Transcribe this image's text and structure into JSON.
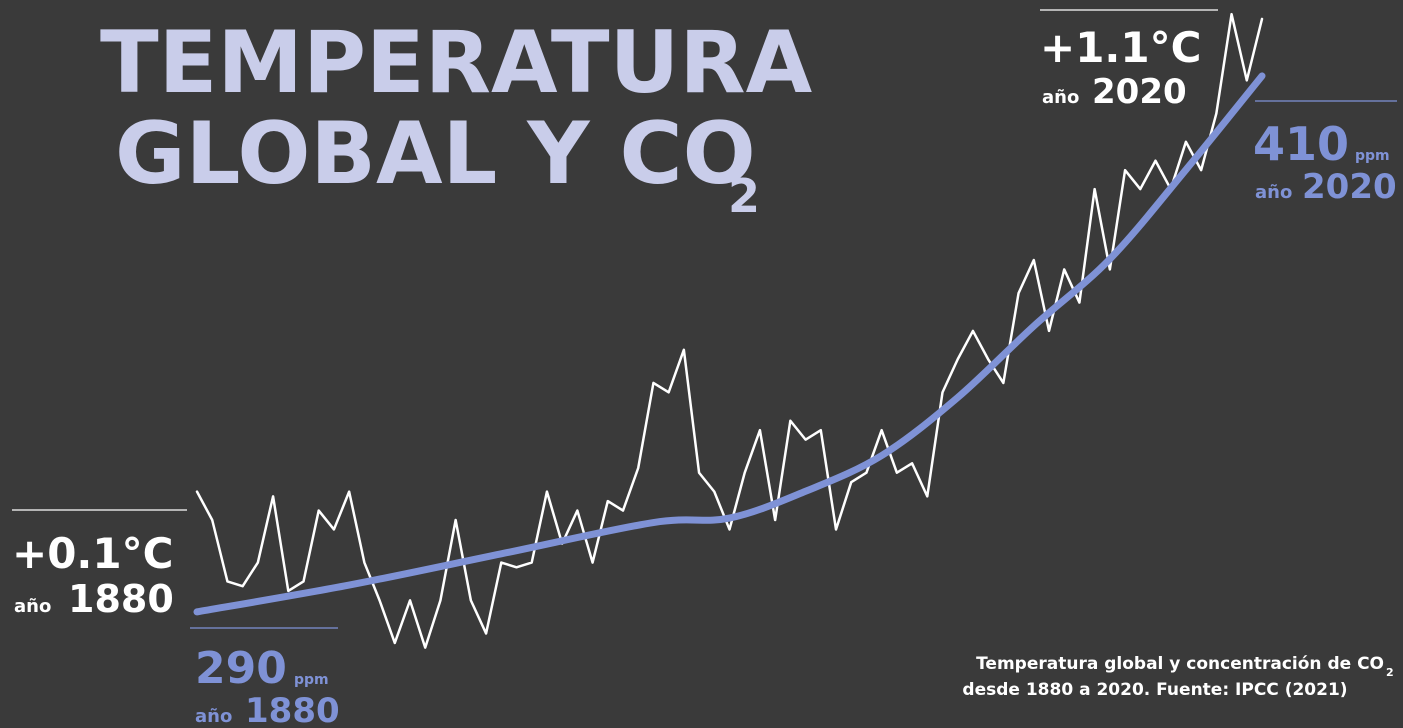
{
  "chart_data": {
    "type": "line",
    "title": [
      "TEMPERATURA",
      "GLOBAL Y CO",
      "2"
    ],
    "caption": [
      "Temperatura global y concentración de CO",
      "2",
      "desde 1880 a 2020. Fuente: IPCC (2021)"
    ],
    "year_prefix": "año",
    "unit2": "ppm",
    "xlim": [
      1880,
      2020
    ],
    "ylim": [
      -0.4,
      1.14
    ],
    "y2lim": [
      264,
      427
    ],
    "series": [
      {
        "color": "#ffffff",
        "x": [
          1880,
          1882,
          1884,
          1886,
          1888,
          1890,
          1892,
          1894,
          1896,
          1898,
          1900,
          1902,
          1904,
          1906,
          1908,
          1910,
          1912,
          1914,
          1916,
          1918,
          1920,
          1922,
          1924,
          1926,
          1928,
          1930,
          1932,
          1934,
          1936,
          1938,
          1940,
          1942,
          1944,
          1946,
          1948,
          1950,
          1952,
          1954,
          1956,
          1958,
          1960,
          1962,
          1964,
          1966,
          1968,
          1970,
          1972,
          1974,
          1976,
          1978,
          1980,
          1982,
          1984,
          1986,
          1988,
          1990,
          1992,
          1994,
          1996,
          1998,
          2000,
          2002,
          2004,
          2006,
          2008,
          2010,
          2012,
          2014,
          2016,
          2018,
          2020
        ],
        "values": [
          0.1,
          0.04,
          -0.09,
          -0.1,
          -0.05,
          0.09,
          -0.11,
          -0.09,
          0.06,
          0.02,
          0.1,
          -0.05,
          -0.13,
          -0.22,
          -0.13,
          -0.23,
          -0.13,
          0.04,
          -0.13,
          -0.2,
          -0.05,
          -0.06,
          -0.05,
          0.1,
          -0.01,
          0.06,
          -0.05,
          0.08,
          0.06,
          0.15,
          0.33,
          0.31,
          0.4,
          0.14,
          0.1,
          0.02,
          0.14,
          0.23,
          0.04,
          0.25,
          0.21,
          0.23,
          0.02,
          0.12,
          0.14,
          0.23,
          0.14,
          0.16,
          0.09,
          0.31,
          0.38,
          0.44,
          0.38,
          0.33,
          0.52,
          0.59,
          0.44,
          0.57,
          0.5,
          0.74,
          0.57,
          0.78,
          0.74,
          0.8,
          0.74,
          0.84,
          0.78,
          0.9,
          1.11,
          0.97,
          1.1
        ],
        "value_labels": [
          "+0.1°C",
          null,
          null,
          null,
          null,
          null,
          null,
          null,
          null,
          null,
          null,
          null,
          null,
          null,
          null,
          null,
          null,
          null,
          null,
          null,
          null,
          null,
          null,
          null,
          null,
          null,
          null,
          null,
          null,
          null,
          null,
          null,
          null,
          null,
          null,
          null,
          null,
          null,
          null,
          null,
          null,
          null,
          null,
          null,
          null,
          null,
          null,
          null,
          null,
          null,
          null,
          null,
          null,
          null,
          null,
          null,
          null,
          null,
          null,
          null,
          null,
          null,
          null,
          null,
          null,
          null,
          null,
          null,
          null,
          null,
          "+1.1°C"
        ]
      },
      {
        "color": "#7f92d6",
        "axis": "y2",
        "x": [
          1880,
          1900,
          1920,
          1940,
          1950,
          1960,
          1970,
          1980,
          1990,
          2000,
          2010,
          2020
        ],
        "values": [
          290,
          296,
          303,
          310,
          311,
          317,
          325,
          338,
          354,
          369,
          389,
          410
        ]
      }
    ]
  }
}
